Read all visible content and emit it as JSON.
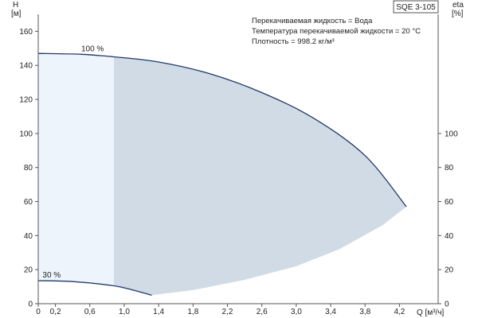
{
  "chart_data": {
    "type": "area",
    "title_box": "SQE 3-105",
    "info_lines": [
      "Перекачиваемая жидкость = Вода",
      "Температура перекачиваемой жидкости = 20 °C",
      "Плотность = 998.2 кг/м³"
    ],
    "left_axis": {
      "label": "H",
      "unit": "[м]",
      "range": [
        0,
        170
      ],
      "ticks": [
        0,
        20,
        40,
        60,
        80,
        100,
        120,
        140,
        160
      ]
    },
    "right_axis": {
      "label": "eta",
      "unit": "[%]",
      "ticks": [
        0,
        20,
        40,
        60,
        80,
        100
      ]
    },
    "x_axis": {
      "label": "Q [м³/ч]",
      "range": [
        0,
        4.65
      ],
      "ticks": [
        "0",
        "0,2",
        "0,6",
        "1,0",
        "1,4",
        "1,8",
        "2,2",
        "2,6",
        "3,0",
        "3,4",
        "3,8",
        "4,2"
      ],
      "tick_values": [
        0,
        0.2,
        0.6,
        1.0,
        1.4,
        1.8,
        2.2,
        2.6,
        3.0,
        3.4,
        3.8,
        4.2
      ]
    },
    "grid": false,
    "curves": [
      {
        "label": "100 %",
        "points": [
          [
            0,
            147
          ],
          [
            0.5,
            146.5
          ],
          [
            0.88,
            145
          ],
          [
            1.4,
            142
          ],
          [
            2.0,
            135
          ],
          [
            2.6,
            124
          ],
          [
            3.2,
            109
          ],
          [
            3.8,
            87
          ],
          [
            4.28,
            57
          ]
        ]
      },
      {
        "label": "30 %",
        "points": [
          [
            0,
            13.5
          ],
          [
            0.4,
            13
          ],
          [
            0.88,
            10.5
          ],
          [
            1.1,
            8
          ],
          [
            1.32,
            5
          ]
        ]
      }
    ],
    "operating_region_lower": [
      [
        1.32,
        5
      ],
      [
        1.8,
        8
      ],
      [
        2.4,
        14
      ],
      [
        3.0,
        22
      ],
      [
        3.5,
        32
      ],
      [
        4.0,
        46
      ],
      [
        4.28,
        57
      ]
    ],
    "recommended_q_min": 0.88
  }
}
